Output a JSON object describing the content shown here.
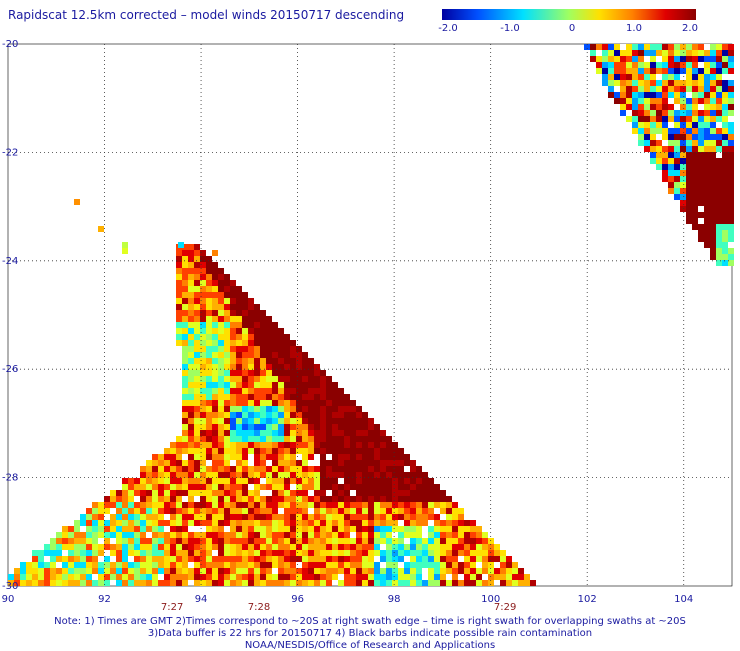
{
  "title": "Rapidscat 12.5km corrected – model winds 20150717 descending",
  "colorbar": {
    "labels": [
      "-2.0",
      "-1.0",
      "0",
      "1.0",
      "2.0"
    ],
    "range": [
      -2.0,
      2.0
    ],
    "colors": [
      "#0000a0",
      "#0050ff",
      "#00e0ff",
      "#a0ff60",
      "#ffe000",
      "#ff8000",
      "#e00000",
      "#8b0000"
    ]
  },
  "chart_data": {
    "type": "heatmap",
    "title": "Rapidscat 12.5km corrected – model winds 20150717 descending",
    "xlim": [
      90,
      105
    ],
    "ylim": [
      -30,
      -20
    ],
    "x_ticks": [
      "90",
      "92",
      "94",
      "96",
      "98",
      "100",
      "102",
      "104"
    ],
    "y_ticks": [
      "-20",
      "-22",
      "-24",
      "-26",
      "-28",
      "-30"
    ],
    "grid": true,
    "times": [
      {
        "label": "7:27",
        "lon": 93.4
      },
      {
        "label": "7:28",
        "lon": 95.2
      },
      {
        "label": "7:29",
        "lon": 100.3
      }
    ]
  },
  "notes": [
    "Note: 1) Times are GMT 2)Times correspond to ~20S at right swath edge – time is right swath for overlapping swaths at ~20S",
    "3)Data buffer is 22 hrs for 20150717 4) Black barbs indicate possible rain contamination",
    "NOAA/NESDIS/Office of Research and Applications"
  ]
}
